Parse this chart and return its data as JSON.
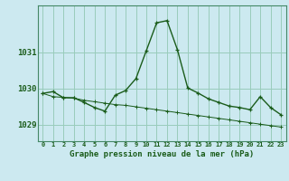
{
  "title": "Graphe pression niveau de la mer (hPa)",
  "background_color": "#cce9f0",
  "grid_color": "#99ccbb",
  "line_color": "#1a5c1a",
  "hours": [
    0,
    1,
    2,
    3,
    4,
    5,
    6,
    7,
    8,
    9,
    10,
    11,
    12,
    13,
    14,
    15,
    16,
    17,
    18,
    19,
    20,
    21,
    22,
    23
  ],
  "pressure1": [
    1029.87,
    1029.92,
    1029.75,
    1029.75,
    1029.62,
    1029.48,
    1029.38,
    1029.82,
    1029.95,
    1030.28,
    1031.05,
    1031.82,
    1031.88,
    1031.08,
    1030.02,
    1029.88,
    1029.72,
    1029.62,
    1029.52,
    1029.48,
    1029.42,
    1029.78,
    1029.48,
    1029.28
  ],
  "pressure2": [
    1029.87,
    1029.78,
    1029.76,
    1029.74,
    1029.68,
    1029.64,
    1029.6,
    1029.56,
    1029.54,
    1029.5,
    1029.46,
    1029.42,
    1029.38,
    1029.34,
    1029.3,
    1029.26,
    1029.22,
    1029.18,
    1029.14,
    1029.1,
    1029.06,
    1029.02,
    1028.98,
    1028.94
  ],
  "yticks": [
    1029,
    1030,
    1031
  ],
  "ylim": [
    1028.55,
    1032.3
  ],
  "xlim": [
    -0.5,
    23.5
  ]
}
